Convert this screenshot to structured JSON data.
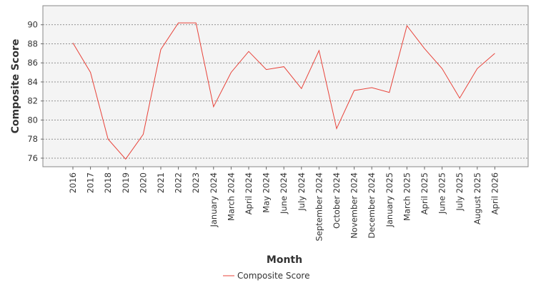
{
  "chart_data": {
    "type": "line",
    "title": "",
    "xlabel": "Month",
    "ylabel": "Composite Score",
    "categories": [
      "2016",
      "2017",
      "2018",
      "2019",
      "2020",
      "2021",
      "2022",
      "2023",
      "January 2024",
      "March 2024",
      "April 2024",
      "May 2024",
      "June 2024",
      "July 2024",
      "September 2024",
      "October 2024",
      "November 2024",
      "December 2024",
      "January 2025",
      "March 2025",
      "April 2025",
      "June 2025",
      "July 2025",
      "August 2025",
      "April 2026"
    ],
    "series": [
      {
        "name": "Composite Score",
        "color": "#e8433a",
        "values": [
          88.1,
          85.0,
          78.0,
          75.9,
          78.5,
          87.4,
          90.2,
          90.2,
          81.4,
          85.0,
          87.2,
          85.3,
          85.6,
          83.3,
          87.3,
          79.1,
          83.1,
          83.4,
          82.9,
          89.9,
          87.5,
          85.4,
          82.3,
          85.4,
          87.0
        ]
      }
    ],
    "ylim": [
      75.1,
      92.0
    ],
    "yticks": [
      76,
      78,
      80,
      82,
      84,
      86,
      88,
      90
    ],
    "grid": true,
    "legend_position": "bottom-center",
    "plot_background": "#f4f4f4",
    "grid_color": "#707070"
  }
}
